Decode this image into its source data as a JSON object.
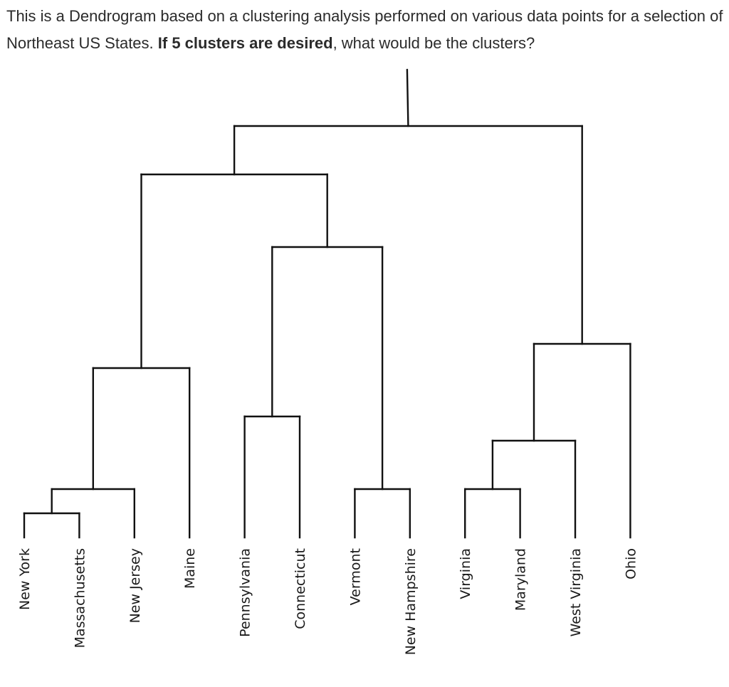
{
  "question": {
    "part1": "This is a Dendrogram based on a clustering analysis performed on various data points for a selection of Northeast US States. ",
    "bold": "If 5 clusters are desired",
    "part2": ", what would be the clusters?"
  },
  "dendrogram": {
    "leaves": [
      "New York",
      "Massachusetts",
      "New Jersey",
      "Maine",
      "Pennsylvania",
      "Connecticut",
      "Vermont",
      "New Hampshire",
      "Virginia",
      "Maryland",
      "West Virginia",
      "Ohio"
    ],
    "merges": [
      {
        "id": "m1",
        "children": [
          "New York",
          "Massachusetts"
        ],
        "height": 1
      },
      {
        "id": "m2",
        "children": [
          "m1",
          "New Jersey"
        ],
        "height": 2
      },
      {
        "id": "m3",
        "children": [
          "m2",
          "Maine"
        ],
        "height": 7
      },
      {
        "id": "m4",
        "children": [
          "Pennsylvania",
          "Connecticut"
        ],
        "height": 5
      },
      {
        "id": "m5",
        "children": [
          "Vermont",
          "New Hampshire"
        ],
        "height": 2
      },
      {
        "id": "m6",
        "children": [
          "m4",
          "m5"
        ],
        "height": 12
      },
      {
        "id": "m7",
        "children": [
          "m3",
          "m6"
        ],
        "height": 15
      },
      {
        "id": "m8",
        "children": [
          "Virginia",
          "Maryland"
        ],
        "height": 2
      },
      {
        "id": "m9",
        "children": [
          "m8",
          "West Virginia"
        ],
        "height": 4
      },
      {
        "id": "m10",
        "children": [
          "m9",
          "Ohio"
        ],
        "height": 8
      },
      {
        "id": "m11",
        "children": [
          "m7",
          "m10"
        ],
        "height": 17
      }
    ]
  }
}
